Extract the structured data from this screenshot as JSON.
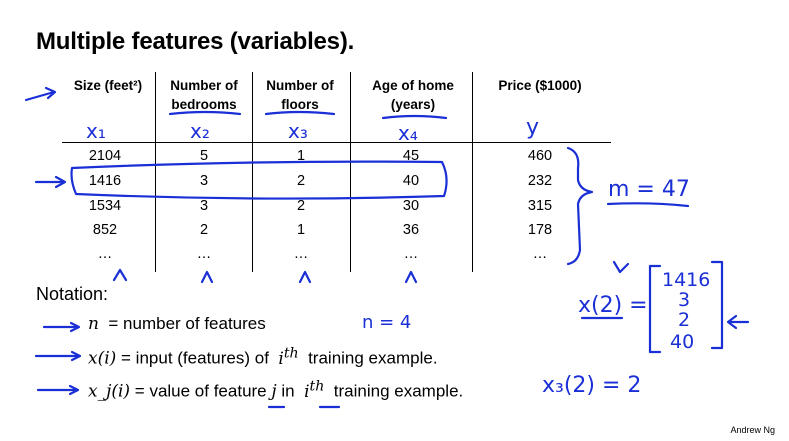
{
  "title": "Multiple features (variables).",
  "table": {
    "headers": [
      {
        "lines": [
          "Size (feet²)"
        ]
      },
      {
        "lines": [
          "Number of",
          "bedrooms"
        ]
      },
      {
        "lines": [
          "Number of",
          "floors"
        ]
      },
      {
        "lines": [
          "Age of home",
          "(years)"
        ]
      },
      {
        "lines": [
          "Price ($1000)"
        ]
      }
    ],
    "rows": [
      [
        "2104",
        "5",
        "1",
        "45",
        "460"
      ],
      [
        "1416",
        "3",
        "2",
        "40",
        "232"
      ],
      [
        "1534",
        "3",
        "2",
        "30",
        "315"
      ],
      [
        "852",
        "2",
        "1",
        "36",
        "178"
      ],
      [
        "…",
        "…",
        "…",
        "…",
        "…"
      ]
    ]
  },
  "notation": {
    "heading": "Notation:",
    "items": [
      {
        "symbol": "n",
        "text": "= number of features"
      },
      {
        "symbol": "x(i)",
        "text": "= input (features) of",
        "sup": "i",
        "sup_suffix": "th",
        "tail": "training example."
      },
      {
        "symbol": "x_j(i)",
        "text": "= value of feature",
        "j": "j",
        "in": "in",
        "tail": "training example."
      }
    ]
  },
  "handwriting": {
    "col_labels": [
      "x₁",
      "x₂",
      "x₃",
      "x₄",
      "y"
    ],
    "m_eq": "m = 47",
    "n_eq": "n = 4",
    "vector_label": "x(2) =",
    "vector_values": [
      "1416",
      "3",
      "2",
      "40"
    ],
    "x32": "x₃(2) = 2",
    "ink_color": "#1a2fd6"
  },
  "footer": "Andrew Ng"
}
